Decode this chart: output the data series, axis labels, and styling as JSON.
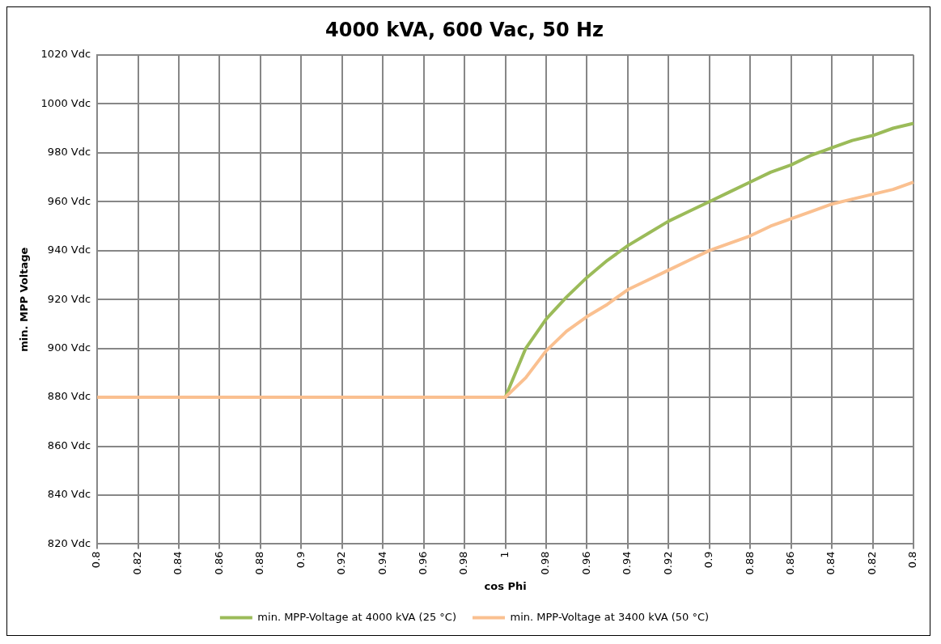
{
  "chart_data": {
    "type": "line",
    "title": "4000 kVA, 600 Vac, 50 Hz",
    "xlabel": "cos Phi",
    "ylabel": "min. MPP Voltage",
    "categories": [
      "0.8",
      null,
      "0.82",
      null,
      "0.84",
      null,
      "0.86",
      null,
      "0.88",
      null,
      "0.9",
      null,
      "0.92",
      null,
      "0.94",
      null,
      "0.96",
      null,
      "0.98",
      null,
      "1",
      null,
      "0.98",
      null,
      "0.96",
      null,
      "0.94",
      null,
      "0.92",
      null,
      "0.9",
      null,
      "0.88",
      null,
      "0.86",
      null,
      "0.84",
      null,
      "0.82",
      null,
      "0.8"
    ],
    "series": [
      {
        "name": "min. MPP-Voltage at 4000 kVA (25 °C)",
        "color": "#9bbb59",
        "values": [
          null,
          null,
          null,
          null,
          null,
          null,
          null,
          null,
          null,
          null,
          null,
          null,
          null,
          null,
          null,
          null,
          null,
          null,
          null,
          null,
          880,
          900,
          912,
          921,
          929,
          936,
          942,
          947,
          952,
          956,
          960,
          964,
          968,
          972,
          975,
          979,
          982,
          985,
          987,
          990,
          992
        ]
      },
      {
        "name": "min. MPP-Voltage at 3400 kVA (50 °C)",
        "color": "#fac090",
        "values": [
          880,
          880,
          880,
          880,
          880,
          880,
          880,
          880,
          880,
          880,
          880,
          880,
          880,
          880,
          880,
          880,
          880,
          880,
          880,
          880,
          880,
          888,
          899,
          907,
          913,
          918,
          924,
          928,
          932,
          936,
          940,
          943,
          946,
          950,
          953,
          956,
          959,
          961,
          963,
          965,
          968
        ]
      }
    ],
    "ylim": [
      820,
      1020
    ],
    "yticks": [
      {
        "value": 820,
        "label": "820 Vdc"
      },
      {
        "value": 840,
        "label": "840 Vdc"
      },
      {
        "value": 860,
        "label": "860 Vdc"
      },
      {
        "value": 880,
        "label": "880 Vdc"
      },
      {
        "value": 900,
        "label": "900 Vdc"
      },
      {
        "value": 920,
        "label": "920 Vdc"
      },
      {
        "value": 940,
        "label": "940 Vdc"
      },
      {
        "value": 960,
        "label": "960 Vdc"
      },
      {
        "value": 980,
        "label": "980 Vdc"
      },
      {
        "value": 1000,
        "label": "1000 Vdc"
      },
      {
        "value": 1020,
        "label": "1020 Vdc"
      }
    ],
    "grid": true,
    "legend": "bottom",
    "marker": "none",
    "line_style": "solid"
  }
}
